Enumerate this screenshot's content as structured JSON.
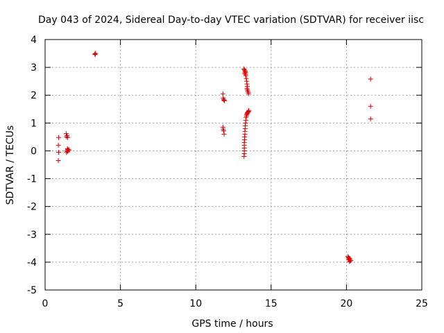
{
  "chart_data": {
    "type": "scatter",
    "title": "Day 043 of 2024, Sidereal Day-to-day VTEC variation (SDTVAR) for receiver iisc",
    "xlabel": "GPS time / hours",
    "ylabel": "SDTVAR / TECUs",
    "xlim": [
      0,
      25
    ],
    "ylim": [
      -5,
      4
    ],
    "xticks": [
      0,
      5,
      10,
      15,
      20,
      25
    ],
    "yticks": [
      -5,
      -4,
      -3,
      -2,
      -1,
      0,
      1,
      2,
      3,
      4
    ],
    "xtick_labels": [
      "0",
      "5",
      "10",
      "15",
      "20",
      "25"
    ],
    "ytick_labels": [
      "-5",
      "-4",
      "-3",
      "-2",
      "-1",
      "0",
      "1",
      "2",
      "3",
      "4"
    ],
    "grid": true,
    "legend": "none",
    "marker": "plus",
    "colors": {
      "points": "#dd0000",
      "grid": "#a0a0a0",
      "axis": "#000000",
      "background": "#ffffff"
    },
    "series": [
      {
        "name": "SDTVAR",
        "points": [
          [
            0.9,
            0.48
          ],
          [
            0.88,
            0.2
          ],
          [
            0.9,
            -0.05
          ],
          [
            0.88,
            -0.35
          ],
          [
            1.4,
            0.62
          ],
          [
            1.45,
            0.55
          ],
          [
            1.42,
            0.5
          ],
          [
            1.5,
            0.48
          ],
          [
            1.48,
            0.08
          ],
          [
            1.5,
            0.05
          ],
          [
            1.55,
            0.04
          ],
          [
            1.45,
            0.0
          ],
          [
            1.5,
            -0.02
          ],
          [
            1.42,
            -0.06
          ],
          [
            1.6,
            0.03
          ],
          [
            3.3,
            3.48
          ],
          [
            3.35,
            3.5
          ],
          [
            3.32,
            3.46
          ],
          [
            11.8,
            2.05
          ],
          [
            11.82,
            1.9
          ],
          [
            11.85,
            1.85
          ],
          [
            11.88,
            1.82
          ],
          [
            11.9,
            1.8
          ],
          [
            11.8,
            0.85
          ],
          [
            11.82,
            0.78
          ],
          [
            11.85,
            0.72
          ],
          [
            11.88,
            0.6
          ],
          [
            13.2,
            2.95
          ],
          [
            13.22,
            2.92
          ],
          [
            13.25,
            2.88
          ],
          [
            13.28,
            2.85
          ],
          [
            13.3,
            2.82
          ],
          [
            13.25,
            2.78
          ],
          [
            13.3,
            2.75
          ],
          [
            13.32,
            2.7
          ],
          [
            13.35,
            2.6
          ],
          [
            13.38,
            2.5
          ],
          [
            13.4,
            2.4
          ],
          [
            13.42,
            2.32
          ],
          [
            13.4,
            2.25
          ],
          [
            13.42,
            2.2
          ],
          [
            13.45,
            2.15
          ],
          [
            13.48,
            2.1
          ],
          [
            13.5,
            2.05
          ],
          [
            13.2,
            -0.2
          ],
          [
            13.22,
            -0.1
          ],
          [
            13.22,
            0.0
          ],
          [
            13.22,
            0.1
          ],
          [
            13.22,
            0.2
          ],
          [
            13.22,
            0.3
          ],
          [
            13.24,
            0.4
          ],
          [
            13.24,
            0.5
          ],
          [
            13.26,
            0.6
          ],
          [
            13.26,
            0.7
          ],
          [
            13.28,
            0.8
          ],
          [
            13.28,
            0.9
          ],
          [
            13.3,
            1.0
          ],
          [
            13.32,
            1.1
          ],
          [
            13.34,
            1.2
          ],
          [
            13.36,
            1.25
          ],
          [
            13.38,
            1.3
          ],
          [
            13.4,
            1.33
          ],
          [
            13.42,
            1.36
          ],
          [
            13.45,
            1.38
          ],
          [
            13.48,
            1.4
          ],
          [
            13.5,
            1.42
          ],
          [
            13.52,
            1.45
          ],
          [
            20.1,
            -3.8
          ],
          [
            20.12,
            -3.82
          ],
          [
            20.15,
            -3.85
          ],
          [
            20.18,
            -3.86
          ],
          [
            20.2,
            -3.88
          ],
          [
            20.22,
            -3.9
          ],
          [
            20.15,
            -3.92
          ],
          [
            20.25,
            -3.95
          ],
          [
            20.2,
            -3.98
          ],
          [
            20.28,
            -3.94
          ],
          [
            21.6,
            2.58
          ],
          [
            21.6,
            1.6
          ],
          [
            21.6,
            1.15
          ]
        ]
      }
    ]
  }
}
